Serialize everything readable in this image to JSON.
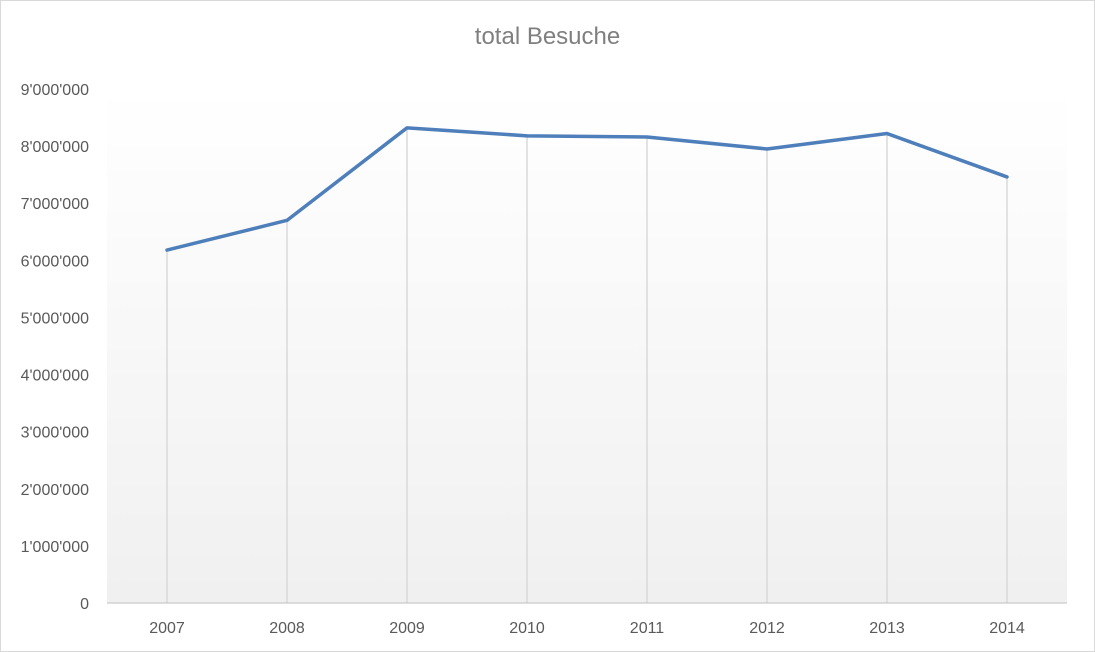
{
  "chart_data": {
    "type": "line",
    "title": "total Besuche",
    "xlabel": "",
    "ylabel": "",
    "categories": [
      "2007",
      "2008",
      "2009",
      "2010",
      "2011",
      "2012",
      "2013",
      "2014"
    ],
    "series": [
      {
        "values": [
          6180000,
          6700000,
          8320000,
          8180000,
          8160000,
          7950000,
          8220000,
          7460000
        ]
      }
    ],
    "ylim": [
      0,
      9000000
    ],
    "y_ticks": [
      "0",
      "1'000'000",
      "2'000'000",
      "3'000'000",
      "4'000'000",
      "5'000'000",
      "6'000'000",
      "7'000'000",
      "8'000'000",
      "9'000'000"
    ],
    "grid": "vertical drop lines",
    "legend": "none",
    "colors": {
      "line": "#4e7fbb",
      "gridline": "#d9d9d9",
      "axis": "#bfbfbf",
      "text": "#595959",
      "title": "#7f7f7f"
    }
  }
}
